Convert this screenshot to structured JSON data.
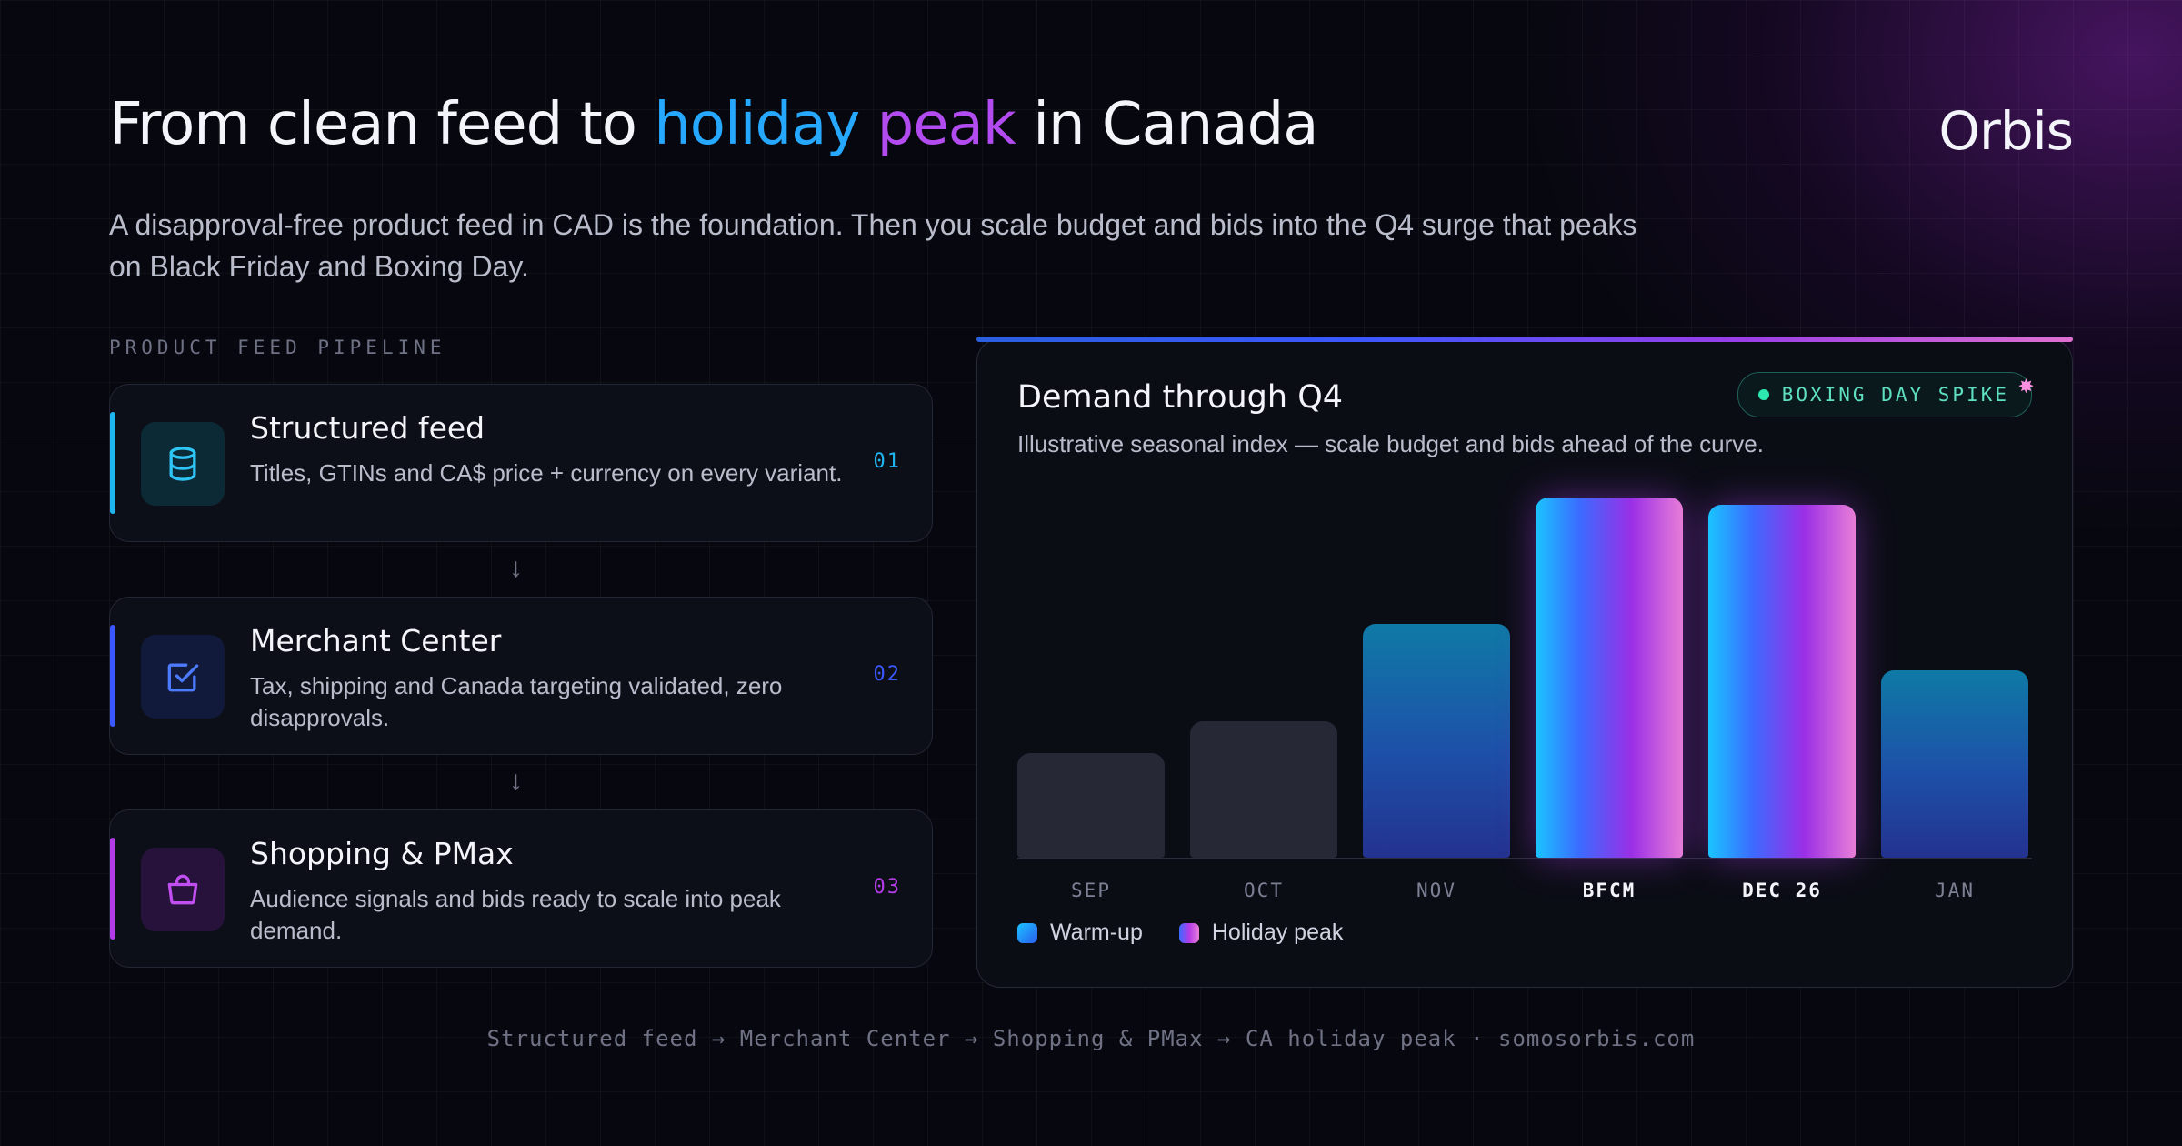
{
  "header": {
    "title_part1": "From clean feed to ",
    "title_hl1": "holiday",
    "title_hl2": "peak",
    "title_part2": " in Canada",
    "subtitle": "A disapproval-free product feed in CAD is the foundation. Then you scale budget and bids into the Q4 surge that peaks on Black Friday and Boxing Day.",
    "logo": "Orbis"
  },
  "pipeline": {
    "label": "PRODUCT FEED PIPELINE",
    "steps": [
      {
        "title": "Structured feed",
        "desc": "Titles, GTINs and CA$ price + currency on every variant.",
        "num": "01",
        "icon": "database-icon",
        "accent": "#1fb6f0"
      },
      {
        "title": "Merchant Center",
        "desc": "Tax, shipping and Canada targeting validated, zero disapprovals.",
        "num": "02",
        "icon": "checkbox-icon",
        "accent": "#3b57ff"
      },
      {
        "title": "Shopping & PMax",
        "desc": "Audience signals and bids ready to scale into peak demand.",
        "num": "03",
        "icon": "shopping-bag-icon",
        "accent": "#b33ce8"
      }
    ],
    "arrow": "↓"
  },
  "chart_data": {
    "type": "bar",
    "title": "Demand through Q4",
    "subtitle": "Illustrative seasonal index — scale budget and bids ahead of the curve.",
    "badge": "BOXING DAY SPIKE",
    "categories": [
      "SEP",
      "OCT",
      "NOV",
      "BFCM",
      "DEC 26",
      "JAN"
    ],
    "values": [
      29,
      38,
      65,
      100,
      98,
      52
    ],
    "styles": [
      "warm",
      "warm",
      "ramp",
      "peak",
      "peak",
      "ramp"
    ],
    "highlighted": [
      "BFCM",
      "DEC 26"
    ],
    "ylim": [
      0,
      100
    ],
    "grid": false,
    "legend": {
      "position": "bottom-left",
      "items": [
        {
          "label": "Warm-up",
          "color": "#1ac4ff"
        },
        {
          "label": "Holiday peak",
          "color": "#b33ce8"
        }
      ]
    }
  },
  "footer": "Structured feed → Merchant Center → Shopping & PMax → CA holiday peak · somosorbis.com"
}
